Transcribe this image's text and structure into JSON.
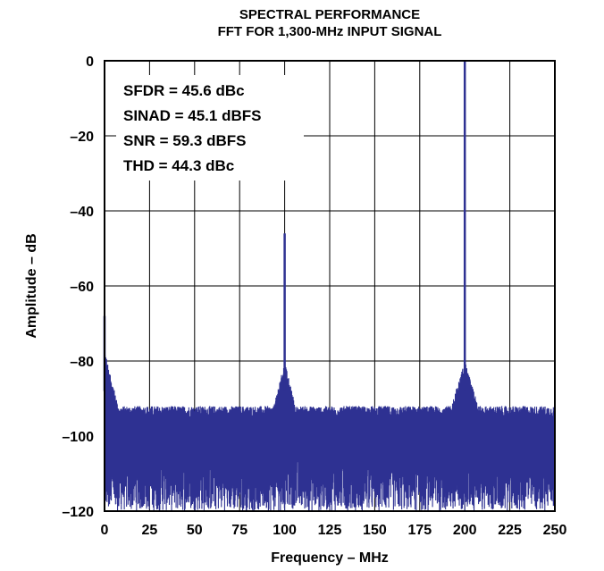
{
  "chart_data": {
    "type": "line",
    "title": [
      "SPECTRAL PERFORMANCE",
      "FFT FOR 1,300-MHz INPUT SIGNAL"
    ],
    "xlabel": "Frequency – MHz",
    "ylabel": "Amplitude – dB",
    "xlim": [
      0,
      250
    ],
    "ylim": [
      -120,
      0
    ],
    "x_ticks": [
      0,
      25,
      50,
      75,
      100,
      125,
      150,
      175,
      200,
      225,
      250
    ],
    "x_tick_labels": [
      "0",
      "25",
      "50",
      "75",
      "100",
      "125",
      "150",
      "175",
      "200",
      "225",
      "250"
    ],
    "y_ticks": [
      0,
      -20,
      -40,
      -60,
      -80,
      -100,
      -120
    ],
    "y_tick_labels": [
      "0",
      "–20",
      "–40",
      "–60",
      "–80",
      "–100",
      "–120"
    ],
    "grid": true,
    "series_color": "#2e3192",
    "annotations": [
      "SFDR = 45.6 dBc",
      "SINAD = 45.1 dBFS",
      "SNR = 59.3 dBFS",
      "THD = 44.3 dBc"
    ],
    "series": [
      {
        "peaks": [
          {
            "x": 0,
            "y": -68
          },
          {
            "x": 100,
            "y": -46
          },
          {
            "x": 200,
            "y": 0
          }
        ],
        "noise_floor_upper": -95,
        "noise_floor_lower": -120
      }
    ]
  }
}
